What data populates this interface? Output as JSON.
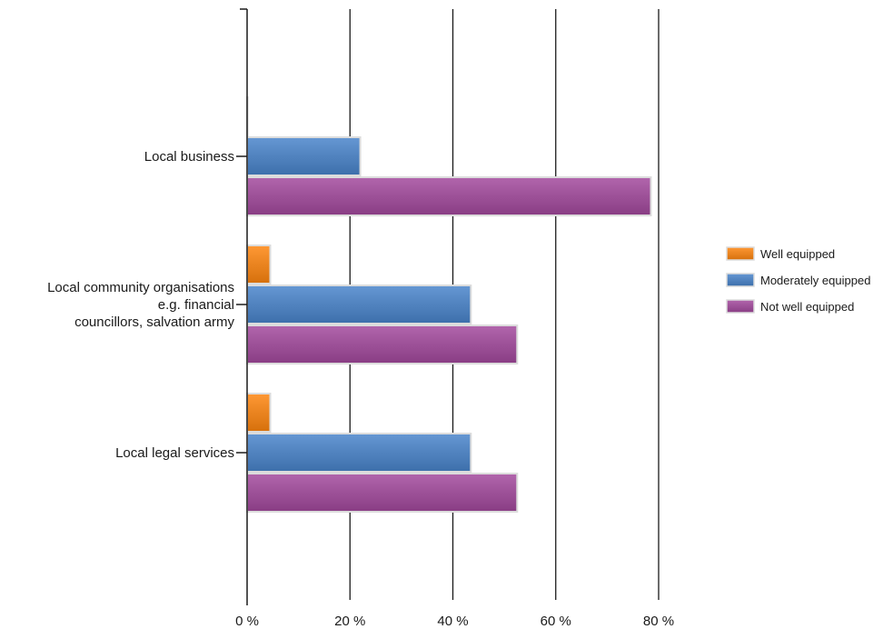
{
  "chart_data": {
    "type": "bar",
    "orientation": "horizontal",
    "categories": [
      [
        "Local business"
      ],
      [
        "Local community organisations",
        "e.g. financial",
        "councillors, salvation army"
      ],
      [
        "Local legal services"
      ]
    ],
    "series": [
      {
        "name": "Well equipped",
        "color": "#e8821e",
        "values": [
          0,
          4.5,
          4.5
        ]
      },
      {
        "name": "Moderately equipped",
        "color": "#4f81bd",
        "values": [
          22,
          43.5,
          43.5
        ]
      },
      {
        "name": "Not well equipped",
        "color": "#9b4f96",
        "values": [
          78.5,
          52.5,
          52.5
        ]
      }
    ],
    "xlim": [
      0,
      80
    ],
    "x_ticks": [
      0,
      20,
      40,
      60,
      80
    ],
    "x_tick_labels": [
      "0 %",
      "20 %",
      "40 %",
      "60 %",
      "80 %"
    ],
    "title": "",
    "xlabel": "",
    "ylabel": "",
    "grid": "vertical",
    "legend_position": "right"
  }
}
